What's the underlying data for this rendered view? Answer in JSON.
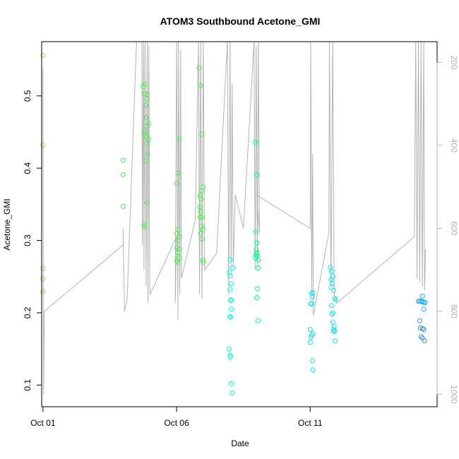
{
  "chart_data": {
    "type": "scatter",
    "title": "ATOM3 Southbound Acetone_GMI",
    "xlabel": "Date",
    "ylabel": "Acetone_GMI",
    "x_ticks": [
      {
        "label": "Oct 01",
        "value": 1
      },
      {
        "label": "Oct 06",
        "value": 6
      },
      {
        "label": "Oct 11",
        "value": 11
      }
    ],
    "xlim": [
      0.95,
      15.75
    ],
    "ylim": [
      0.07,
      0.575
    ],
    "y_ticks": [
      0.1,
      0.2,
      0.3,
      0.4,
      0.5
    ],
    "right_axis": {
      "label": "",
      "ticks": [
        200,
        400,
        600,
        800,
        1000
      ],
      "lim": [
        1030,
        150
      ],
      "color": "#b3b3b3",
      "description": "pressure profile drawn as grey line (reversed axis)"
    },
    "grid": false,
    "legend": "none",
    "marker": "open circle",
    "color_scale": [
      "#8ee63a",
      "#45f045",
      "#00ff80",
      "#00ffcc",
      "#00e8ff",
      "#0fb0ff",
      "#2f8cf0"
    ],
    "points": [
      [
        1.0,
        0.556,
        0
      ],
      [
        1.0,
        0.432,
        0
      ],
      [
        1.0,
        0.261,
        0
      ],
      [
        1.0,
        0.247,
        0
      ],
      [
        1.0,
        0.229,
        0
      ],
      [
        4.0,
        0.411,
        1
      ],
      [
        4.0,
        0.391,
        1
      ],
      [
        4.0,
        0.347,
        1
      ],
      [
        4.75,
        0.513,
        1
      ],
      [
        4.82,
        0.516,
        1
      ],
      [
        4.9,
        0.502,
        1
      ],
      [
        4.8,
        0.503,
        1
      ],
      [
        4.85,
        0.487,
        1
      ],
      [
        4.9,
        0.496,
        1
      ],
      [
        4.86,
        0.47,
        1
      ],
      [
        4.95,
        0.462,
        1
      ],
      [
        4.8,
        0.451,
        1
      ],
      [
        4.9,
        0.458,
        1
      ],
      [
        4.78,
        0.447,
        1
      ],
      [
        4.88,
        0.443,
        1
      ],
      [
        4.95,
        0.44,
        1
      ],
      [
        4.9,
        0.434,
        1
      ],
      [
        4.92,
        0.419,
        1
      ],
      [
        4.85,
        0.41,
        1
      ],
      [
        4.9,
        0.352,
        1
      ],
      [
        4.78,
        0.322,
        1
      ],
      [
        4.8,
        0.319,
        1
      ],
      [
        6.1,
        0.44,
        1
      ],
      [
        6.05,
        0.393,
        1
      ],
      [
        6.0,
        0.379,
        1
      ],
      [
        6.05,
        0.315,
        1
      ],
      [
        6.0,
        0.31,
        1
      ],
      [
        6.1,
        0.305,
        1
      ],
      [
        6.05,
        0.3,
        1
      ],
      [
        6.0,
        0.29,
        1
      ],
      [
        6.1,
        0.288,
        1
      ],
      [
        6.05,
        0.283,
        1
      ],
      [
        6.1,
        0.276,
        1
      ],
      [
        6.0,
        0.272,
        1
      ],
      [
        6.05,
        0.27,
        1
      ],
      [
        6.85,
        0.539,
        1
      ],
      [
        6.9,
        0.514,
        1
      ],
      [
        6.95,
        0.447,
        1
      ],
      [
        7.0,
        0.374,
        1
      ],
      [
        6.95,
        0.369,
        1
      ],
      [
        6.88,
        0.362,
        1
      ],
      [
        6.92,
        0.357,
        1
      ],
      [
        6.87,
        0.346,
        1
      ],
      [
        6.9,
        0.34,
        1
      ],
      [
        6.95,
        0.332,
        1
      ],
      [
        6.88,
        0.332,
        1
      ],
      [
        6.93,
        0.32,
        1
      ],
      [
        6.98,
        0.315,
        1
      ],
      [
        6.9,
        0.31,
        1
      ],
      [
        6.95,
        0.302,
        1
      ],
      [
        7.0,
        0.27,
        1
      ],
      [
        6.98,
        0.273,
        1
      ],
      [
        8.0,
        0.274,
        3
      ],
      [
        8.1,
        0.262,
        3
      ],
      [
        7.98,
        0.256,
        3
      ],
      [
        8.0,
        0.251,
        3
      ],
      [
        8.05,
        0.24,
        3
      ],
      [
        8.0,
        0.232,
        3
      ],
      [
        8.02,
        0.217,
        3
      ],
      [
        8.05,
        0.218,
        3
      ],
      [
        8.05,
        0.205,
        3
      ],
      [
        8.0,
        0.195,
        3
      ],
      [
        8.03,
        0.194,
        3
      ],
      [
        7.97,
        0.15,
        3
      ],
      [
        8.0,
        0.141,
        3
      ],
      [
        8.02,
        0.139,
        3
      ],
      [
        8.05,
        0.102,
        3
      ],
      [
        8.08,
        0.089,
        3
      ],
      [
        8.95,
        0.436,
        2
      ],
      [
        9.0,
        0.391,
        2
      ],
      [
        8.97,
        0.312,
        2
      ],
      [
        9.0,
        0.297,
        2
      ],
      [
        8.98,
        0.287,
        2
      ],
      [
        9.02,
        0.283,
        2
      ],
      [
        8.97,
        0.281,
        2
      ],
      [
        9.0,
        0.279,
        2
      ],
      [
        9.05,
        0.273,
        2
      ],
      [
        8.95,
        0.276,
        2
      ],
      [
        9.05,
        0.262,
        2
      ],
      [
        9.03,
        0.233,
        2
      ],
      [
        9.0,
        0.221,
        2
      ],
      [
        9.05,
        0.189,
        2
      ],
      [
        11.05,
        0.227,
        4
      ],
      [
        11.08,
        0.222,
        4
      ],
      [
        11.1,
        0.228,
        4
      ],
      [
        11.02,
        0.213,
        4
      ],
      [
        11.06,
        0.212,
        4
      ],
      [
        11.0,
        0.177,
        4
      ],
      [
        11.1,
        0.171,
        4
      ],
      [
        11.05,
        0.169,
        4
      ],
      [
        11.03,
        0.166,
        4
      ],
      [
        11.0,
        0.159,
        4
      ],
      [
        11.08,
        0.134,
        4
      ],
      [
        11.1,
        0.121,
        4
      ],
      [
        11.75,
        0.263,
        4
      ],
      [
        11.8,
        0.257,
        4
      ],
      [
        11.85,
        0.25,
        4
      ],
      [
        11.78,
        0.246,
        4
      ],
      [
        11.82,
        0.241,
        4
      ],
      [
        11.78,
        0.235,
        4
      ],
      [
        11.88,
        0.231,
        4
      ],
      [
        11.92,
        0.22,
        4
      ],
      [
        11.95,
        0.218,
        4
      ],
      [
        11.8,
        0.21,
        4
      ],
      [
        11.85,
        0.2,
        4
      ],
      [
        11.82,
        0.198,
        4
      ],
      [
        11.85,
        0.187,
        4
      ],
      [
        11.9,
        0.181,
        4
      ],
      [
        11.87,
        0.177,
        4
      ],
      [
        11.92,
        0.175,
        4
      ],
      [
        11.88,
        0.174,
        4
      ],
      [
        11.93,
        0.161,
        4
      ],
      [
        15.05,
        0.216,
        5
      ],
      [
        15.1,
        0.216,
        5
      ],
      [
        15.15,
        0.216,
        5
      ],
      [
        15.2,
        0.215,
        5
      ],
      [
        15.25,
        0.215,
        5
      ],
      [
        15.3,
        0.214,
        5
      ],
      [
        15.2,
        0.223,
        5
      ],
      [
        15.25,
        0.205,
        5
      ],
      [
        15.1,
        0.189,
        6
      ],
      [
        15.12,
        0.179,
        6
      ],
      [
        15.2,
        0.178,
        6
      ],
      [
        15.25,
        0.177,
        6
      ],
      [
        15.15,
        0.167,
        6
      ],
      [
        15.2,
        0.165,
        6
      ],
      [
        15.28,
        0.161,
        6
      ]
    ],
    "profile": [
      [
        1.0,
        215
      ],
      [
        1.02,
        1000
      ],
      [
        1.05,
        800
      ],
      [
        4.0,
        640
      ],
      [
        4.0,
        600
      ],
      [
        4.05,
        800
      ],
      [
        4.15,
        770
      ],
      [
        4.5,
        150
      ],
      [
        4.7,
        150
      ],
      [
        4.72,
        640
      ],
      [
        4.76,
        150
      ],
      [
        4.78,
        700
      ],
      [
        4.82,
        150
      ],
      [
        4.86,
        740
      ],
      [
        4.9,
        150
      ],
      [
        4.93,
        780
      ],
      [
        4.96,
        160
      ],
      [
        5.0,
        760
      ],
      [
        6.0,
        620
      ],
      [
        5.95,
        780
      ],
      [
        6.0,
        150
      ],
      [
        6.05,
        820
      ],
      [
        6.07,
        150
      ],
      [
        6.12,
        760
      ],
      [
        6.15,
        170
      ],
      [
        6.18,
        720
      ],
      [
        6.7,
        580
      ],
      [
        6.82,
        150
      ],
      [
        6.86,
        760
      ],
      [
        6.9,
        150
      ],
      [
        6.95,
        770
      ],
      [
        7.0,
        150
      ],
      [
        7.05,
        700
      ],
      [
        7.5,
        660
      ],
      [
        7.9,
        150
      ],
      [
        7.95,
        760
      ],
      [
        8.0,
        150
      ],
      [
        8.04,
        690
      ],
      [
        8.08,
        250
      ],
      [
        8.12,
        690
      ],
      [
        8.2,
        520
      ],
      [
        8.5,
        600
      ],
      [
        8.9,
        150
      ],
      [
        8.94,
        700
      ],
      [
        8.98,
        160
      ],
      [
        9.02,
        690
      ],
      [
        9.06,
        150
      ],
      [
        9.1,
        610
      ],
      [
        9.0,
        520
      ],
      [
        11.0,
        600
      ],
      [
        11.02,
        150
      ],
      [
        11.06,
        760
      ],
      [
        11.09,
        420
      ],
      [
        11.12,
        810
      ],
      [
        11.7,
        610
      ],
      [
        11.72,
        150
      ],
      [
        11.78,
        740
      ],
      [
        11.84,
        150
      ],
      [
        11.9,
        760
      ],
      [
        12.0,
        780
      ],
      [
        14.9,
        620
      ],
      [
        14.95,
        150
      ],
      [
        15.0,
        720
      ],
      [
        15.05,
        150
      ],
      [
        15.1,
        730
      ],
      [
        15.15,
        150
      ],
      [
        15.2,
        740
      ],
      [
        15.25,
        150
      ],
      [
        15.28,
        750
      ],
      [
        15.32,
        650
      ]
    ]
  }
}
